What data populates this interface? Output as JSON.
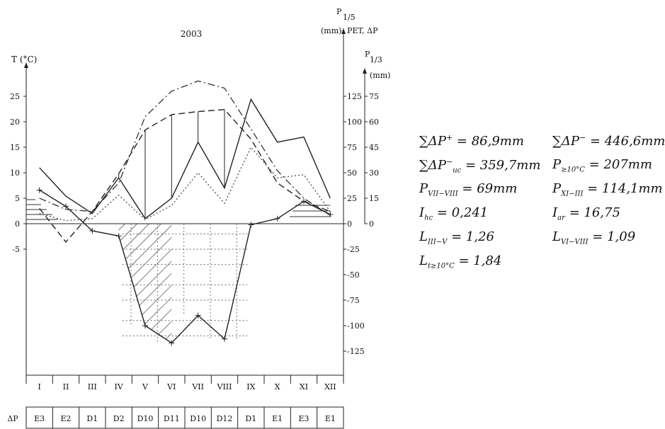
{
  "chart_data": {
    "type": "line",
    "title": "2003",
    "left_axis_label": "T (°C)",
    "right_axis1_label_top": "P",
    "right_axis1_label_sub": "1/5",
    "right_axis1_label_unit": "(mm)",
    "right_axis1_label_rest": "PET, ΔP",
    "right_axis2_label_top": "P",
    "right_axis2_label_sub": "1/3",
    "right_axis2_label_unit": "(mm)",
    "left_ticks": [
      "25",
      "20",
      "15",
      "10",
      "5",
      "0",
      "-5"
    ],
    "right_ticks1": [
      "125",
      "100",
      "75",
      "50",
      "25",
      "0",
      "-25",
      "-50",
      "-75",
      "-100",
      "-125"
    ],
    "right_ticks2": [
      "75",
      "60",
      "45",
      "30",
      "15",
      "0"
    ],
    "ylim_left": [
      -5,
      25
    ],
    "ylim_right": [
      -125,
      125
    ],
    "categories": [
      "I",
      "II",
      "III",
      "IV",
      "V",
      "VI",
      "VII",
      "VIII",
      "IX",
      "X",
      "XI",
      "XII"
    ],
    "series": [
      {
        "style": "solid",
        "axis": "right",
        "values": [
          55,
          27,
          10,
          45,
          5,
          25,
          80,
          35,
          122,
          80,
          85,
          25
        ]
      },
      {
        "style": "dashdot",
        "axis": "right",
        "values": [
          25,
          14,
          12,
          40,
          105,
          130,
          140,
          133,
          93,
          52,
          25,
          8
        ]
      },
      {
        "style": "dashed",
        "axis": "right",
        "values": [
          15,
          -18,
          12,
          49,
          92,
          107,
          110,
          112,
          83,
          40,
          22,
          12
        ]
      },
      {
        "style": "dotted",
        "axis": "right",
        "values": [
          10,
          3,
          5,
          28,
          4,
          18,
          50,
          20,
          75,
          45,
          48,
          12
        ]
      },
      {
        "style": "deltaP",
        "axis": "right",
        "values": [
          33,
          17,
          -7,
          -12,
          -100,
          -117,
          -90,
          -113,
          -1,
          5,
          22,
          9
        ]
      }
    ],
    "deltaP_row_label": "ΔP",
    "deltaP_classes": [
      "E3",
      "E2",
      "D1",
      "D2",
      "D10",
      "D11",
      "D10",
      "D12",
      "D1",
      "E1",
      "E3",
      "E1"
    ]
  },
  "formulas": [
    {
      "sym": "∑ΔP",
      "sup": "+",
      "sub": "",
      "rest": " = 86,9mm"
    },
    {
      "sym": "∑ΔP",
      "sup": "−",
      "sub": "",
      "rest": " = 446,6mm"
    },
    {
      "sym": "∑ΔP",
      "sup": "−",
      "sub": "uc",
      "rest": " = 359,7mm"
    },
    {
      "sym": "P",
      "sup": "",
      "sub": "≥10°C",
      "rest": " = 207mm"
    },
    {
      "sym": "P",
      "sup": "",
      "sub": "VII−VIII",
      "rest": " = 69mm"
    },
    {
      "sym": "P",
      "sup": "",
      "sub": "XI−III",
      "rest": " = 114,1mm"
    },
    {
      "sym": "I",
      "sup": "",
      "sub": "hc",
      "rest": " = 0,241"
    },
    {
      "sym": "I",
      "sup": "",
      "sub": "ar",
      "rest": " = 16,75"
    },
    {
      "sym": "L",
      "sup": "",
      "sub": "III−V",
      "rest": " = 1,26"
    },
    {
      "sym": "L",
      "sup": "",
      "sub": "VI−VIII",
      "rest": " = 1,09"
    },
    {
      "sym": "L",
      "sup": "",
      "sub": "t≥10°C",
      "rest": " = 1,84"
    }
  ]
}
